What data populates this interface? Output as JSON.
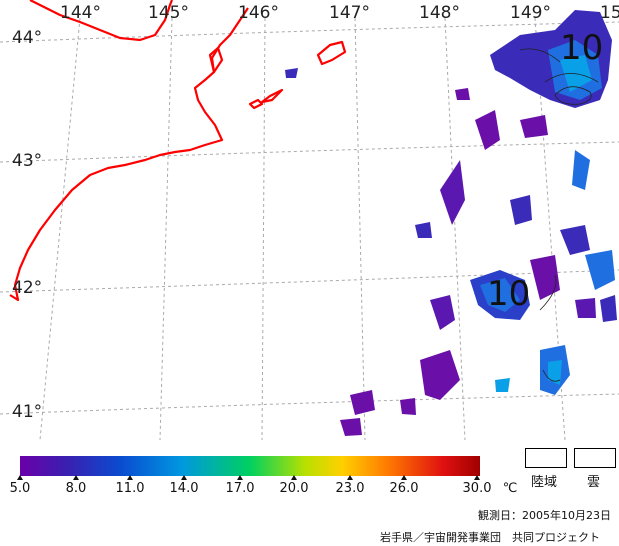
{
  "map": {
    "longitude_labels": [
      "144°",
      "145°",
      "146°",
      "147°",
      "148°",
      "149°",
      "15"
    ],
    "latitude_labels": [
      "44°",
      "43°",
      "42°",
      "41°"
    ],
    "contour_labels": [
      "10",
      "10"
    ],
    "coastline_color": "#ff0000",
    "grid_color": "#aaaaaa"
  },
  "colorbar": {
    "tick_labels": [
      "5.0",
      "8.0",
      "11.0",
      "14.0",
      "17.0",
      "20.0",
      "23.0",
      "26.0",
      "30.0"
    ],
    "unit": "℃"
  },
  "legend": {
    "land_label": "陸域",
    "cloud_label": "雲"
  },
  "footer": {
    "observation_date": "観測日：2005年10月23日",
    "credit": "岩手県／宇宙開発事業団　共同プロジェクト"
  }
}
